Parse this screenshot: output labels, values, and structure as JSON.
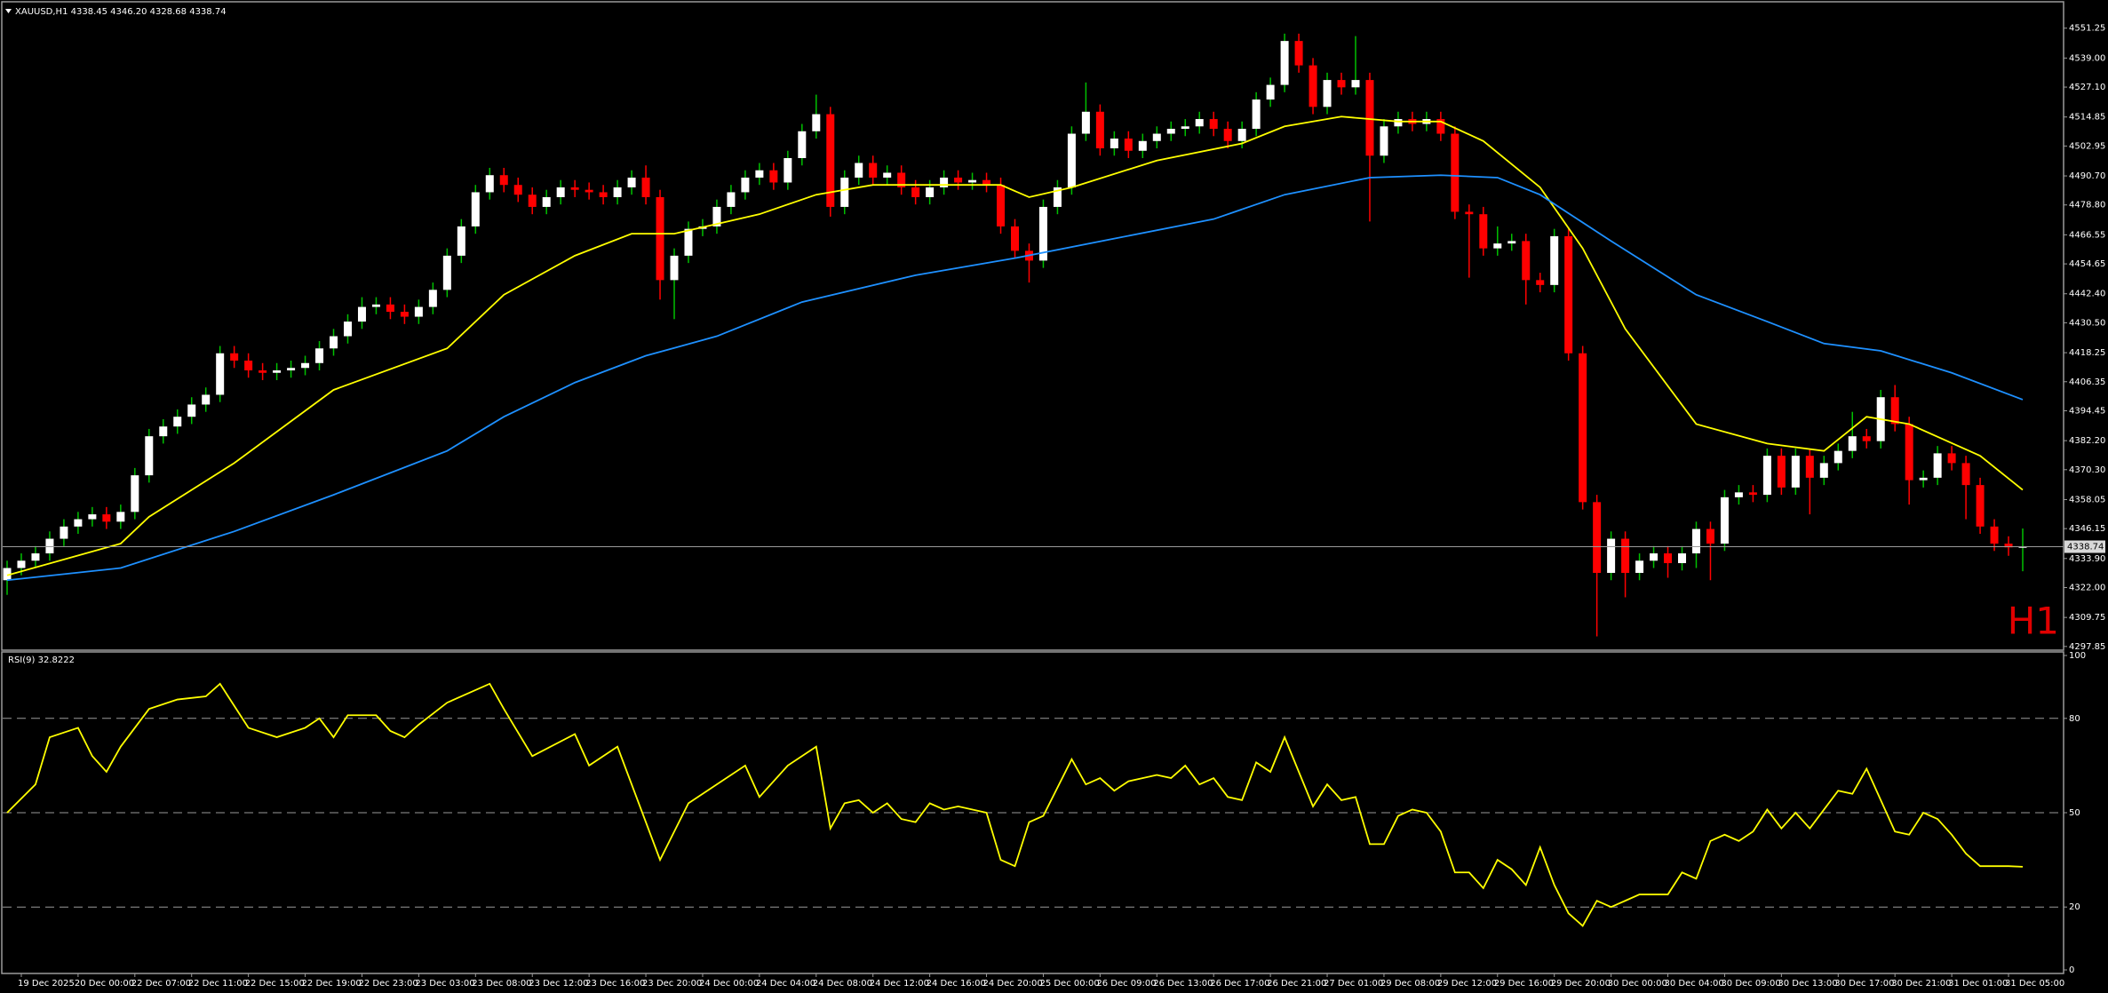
{
  "chart_data": [
    {
      "type": "candlestick",
      "title": "XAUUSD,H1  4338.45 4346.20 4328.68 4338.74",
      "annotation": "H1",
      "categories": [
        null,
        "19 Dec 2025",
        null,
        null,
        null,
        "20 Dec 00:00",
        null,
        null,
        null,
        "22 Dec 07:00",
        null,
        null,
        null,
        "22 Dec 11:00",
        null,
        null,
        null,
        "22 Dec 15:00",
        null,
        null,
        null,
        "22 Dec 19:00",
        null,
        null,
        null,
        "22 Dec 23:00",
        null,
        null,
        null,
        "23 Dec 03:00",
        null,
        null,
        null,
        "23 Dec 08:00",
        null,
        null,
        null,
        "23 Dec 12:00",
        null,
        null,
        null,
        "23 Dec 16:00",
        null,
        null,
        null,
        "23 Dec 20:00",
        null,
        null,
        null,
        "24 Dec 00:00",
        null,
        null,
        null,
        "24 Dec 04:00",
        null,
        null,
        null,
        "24 Dec 08:00",
        null,
        null,
        null,
        "24 Dec 12:00",
        null,
        null,
        null,
        "24 Dec 16:00",
        null,
        null,
        null,
        "24 Dec 20:00",
        null,
        null,
        null,
        "25 Dec 00:00",
        null,
        null,
        null,
        "26 Dec 09:00",
        null,
        null,
        null,
        "26 Dec 13:00",
        null,
        null,
        null,
        "26 Dec 17:00",
        null,
        null,
        null,
        "26 Dec 21:00",
        null,
        null,
        null,
        "27 Dec 01:00",
        null,
        null,
        null,
        "29 Dec 08:00",
        null,
        null,
        null,
        "29 Dec 12:00",
        null,
        null,
        null,
        "29 Dec 16:00",
        null,
        null,
        null,
        "29 Dec 20:00",
        null,
        null,
        null,
        "30 Dec 00:00",
        null,
        null,
        null,
        "30 Dec 04:00",
        null,
        null,
        null,
        "30 Dec 09:00",
        null,
        null,
        null,
        "30 Dec 13:00",
        null,
        null,
        null,
        "30 Dec 17:00",
        null,
        null,
        null,
        "30 Dec 21:00",
        null,
        null,
        null,
        "31 Dec 01:00",
        null,
        null,
        null,
        "31 Dec 05:00",
        null
      ],
      "open": [
        4325,
        4330,
        4333,
        4336,
        4342,
        4347,
        4350,
        4352,
        4349,
        4353,
        4368,
        4384,
        4388,
        4392,
        4397,
        4401,
        4418,
        4415,
        4411,
        4410,
        4411,
        4412,
        4414,
        4420,
        4425,
        4431,
        4437,
        4438,
        4435,
        4433,
        4437,
        4444,
        4458,
        4470,
        4484,
        4491,
        4487,
        4483,
        4478,
        4482,
        4486,
        4485,
        4484,
        4482,
        4486,
        4490,
        4482,
        4448,
        4458,
        4469,
        4470,
        4478,
        4484,
        4490,
        4493,
        4488,
        4498,
        4509,
        4516,
        4478,
        4490,
        4496,
        4490,
        4492,
        4486,
        4482,
        4486,
        4490,
        4488,
        4489,
        4487,
        4470,
        4460,
        4456,
        4478,
        4486,
        4508,
        4517,
        4502,
        4506,
        4501,
        4505,
        4508,
        4510,
        4511,
        4514,
        4510,
        4505,
        4510,
        4522,
        4528,
        4546,
        4536,
        4519,
        4530,
        4527,
        4530,
        4499,
        4511,
        4514,
        4512,
        4514,
        4508,
        4476,
        4475,
        4461,
        4463,
        4464,
        4448,
        4446,
        4466,
        4418,
        4357,
        4328,
        4342,
        4328,
        4333,
        4336,
        4332,
        4336,
        4346,
        4340,
        4359,
        4361,
        4360,
        4376,
        4363,
        4376,
        4367,
        4373,
        4378,
        4384,
        4382,
        4400,
        4389,
        4366,
        4367,
        4377,
        4373,
        4364,
        4347,
        4340,
        4338.45
      ],
      "high": [
        4333,
        4336,
        4339,
        4345,
        4350,
        4353,
        4355,
        4355,
        4356,
        4371,
        4387,
        4391,
        4395,
        4400,
        4404,
        4421,
        4421,
        4418,
        4414,
        4414,
        4415,
        4417,
        4423,
        4428,
        4434,
        4441,
        4441,
        4441,
        4438,
        4440,
        4447,
        4461,
        4473,
        4487,
        4494,
        4494,
        4490,
        4486,
        4485,
        4489,
        4489,
        4488,
        4487,
        4489,
        4493,
        4495,
        4485,
        4461,
        4472,
        4473,
        4481,
        4487,
        4493,
        4496,
        4496,
        4501,
        4512,
        4524,
        4519,
        4493,
        4499,
        4499,
        4495,
        4495,
        4489,
        4489,
        4493,
        4493,
        4492,
        4492,
        4490,
        4473,
        4463,
        4481,
        4489,
        4511,
        4529,
        4520,
        4509,
        4509,
        4508,
        4511,
        4513,
        4514,
        4517,
        4517,
        4513,
        4513,
        4525,
        4531,
        4549,
        4549,
        4539,
        4533,
        4533,
        4548,
        4533,
        4514,
        4517,
        4517,
        4517,
        4517,
        4511,
        4479,
        4478,
        4470,
        4467,
        4467,
        4451,
        4469,
        4469,
        4421,
        4360,
        4345,
        4345,
        4336,
        4339,
        4339,
        4339,
        4349,
        4349,
        4362,
        4364,
        4364,
        4379,
        4379,
        4379,
        4379,
        4376,
        4381,
        4394,
        4387,
        4403,
        4405,
        4392,
        4370,
        4380,
        4380,
        4376,
        4367,
        4350,
        4343,
        4346.2
      ],
      "low": [
        4319,
        4327,
        4330,
        4333,
        4339,
        4344,
        4347,
        4346,
        4346,
        4350,
        4365,
        4381,
        4385,
        4389,
        4394,
        4398,
        4412,
        4408,
        4407,
        4407,
        4408,
        4409,
        4411,
        4417,
        4422,
        4428,
        4434,
        4432,
        4430,
        4430,
        4434,
        4441,
        4455,
        4467,
        4481,
        4484,
        4480,
        4475,
        4475,
        4479,
        4482,
        4481,
        4479,
        4479,
        4483,
        4479,
        4440,
        4432,
        4455,
        4466,
        4467,
        4475,
        4481,
        4487,
        4485,
        4485,
        4495,
        4506,
        4474,
        4475,
        4487,
        4487,
        4487,
        4483,
        4479,
        4479,
        4483,
        4485,
        4485,
        4484,
        4467,
        4457,
        4447,
        4453,
        4475,
        4483,
        4505,
        4499,
        4499,
        4498,
        4498,
        4502,
        4505,
        4507,
        4508,
        4507,
        4502,
        4502,
        4507,
        4519,
        4525,
        4533,
        4516,
        4516,
        4524,
        4524,
        4472,
        4496,
        4508,
        4509,
        4509,
        4505,
        4473,
        4449,
        4458,
        4458,
        4460,
        4438,
        4443,
        4443,
        4415,
        4354,
        4302,
        4325,
        4318,
        4325,
        4330,
        4326,
        4329,
        4330,
        4325,
        4337,
        4356,
        4357,
        4357,
        4360,
        4360,
        4352,
        4364,
        4370,
        4375,
        4379,
        4379,
        4386,
        4356,
        4363,
        4364,
        4370,
        4350,
        4344,
        4337,
        4335,
        4328.68
      ],
      "close": [
        4330,
        4333,
        4336,
        4342,
        4347,
        4350,
        4352,
        4349,
        4353,
        4368,
        4384,
        4388,
        4392,
        4397,
        4401,
        4418,
        4415,
        4411,
        4410,
        4411,
        4412,
        4414,
        4420,
        4425,
        4431,
        4437,
        4438,
        4435,
        4433,
        4437,
        4444,
        4458,
        4470,
        4484,
        4491,
        4487,
        4483,
        4478,
        4482,
        4486,
        4485,
        4484,
        4482,
        4486,
        4490,
        4482,
        4448,
        4458,
        4469,
        4470,
        4478,
        4484,
        4490,
        4493,
        4488,
        4498,
        4509,
        4516,
        4478,
        4490,
        4496,
        4490,
        4492,
        4486,
        4482,
        4486,
        4490,
        4488,
        4489,
        4487,
        4470,
        4460,
        4456,
        4478,
        4486,
        4508,
        4517,
        4502,
        4506,
        4501,
        4505,
        4508,
        4510,
        4511,
        4514,
        4510,
        4505,
        4510,
        4522,
        4528,
        4546,
        4536,
        4519,
        4530,
        4527,
        4530,
        4499,
        4511,
        4514,
        4512,
        4514,
        4508,
        4476,
        4475,
        4461,
        4463,
        4464,
        4448,
        4446,
        4466,
        4418,
        4357,
        4328,
        4342,
        4328,
        4333,
        4336,
        4332,
        4336,
        4346,
        4340,
        4359,
        4361,
        4360,
        4376,
        4363,
        4376,
        4367,
        4373,
        4378,
        4384,
        4382,
        4400,
        4389,
        4366,
        4367,
        4377,
        4373,
        4364,
        4347,
        4340,
        4338.45,
        4338.74
      ],
      "up_color": "#ffffff",
      "up_wick_color": "#00c000",
      "down_color": "#ff0000",
      "series": [
        {
          "color": "#ffff00",
          "x": [
            0,
            8,
            10,
            16,
            23,
            31,
            35,
            40,
            44,
            47,
            53,
            57,
            61,
            66,
            70,
            72,
            75,
            81,
            87,
            90,
            94,
            98,
            101,
            104,
            108,
            111,
            114,
            119,
            124,
            128,
            131,
            134,
            139,
            142
          ],
          "values": [
            4327,
            4340,
            4351,
            4373,
            4403,
            4420,
            4442,
            4458,
            4467,
            4467,
            4475,
            4483,
            4487,
            4487,
            4487,
            4482,
            4486,
            4497,
            4504,
            4511,
            4515,
            4513,
            4513,
            4505,
            4486,
            4461,
            4428,
            4389,
            4381,
            4378,
            4392,
            4389,
            4376,
            4362
          ]
        },
        {
          "color": "#1e90ff",
          "x": [
            0,
            8,
            16,
            23,
            31,
            35,
            40,
            45,
            50,
            56,
            64,
            71,
            78,
            85,
            90,
            96,
            101,
            105,
            108,
            113,
            119,
            124,
            128,
            132,
            137,
            142
          ],
          "values": [
            4325,
            4330,
            4345,
            4360,
            4378,
            4392,
            4406,
            4417,
            4425,
            4439,
            4450,
            4457,
            4465,
            4473,
            4483,
            4490,
            4491,
            4490,
            4483,
            4464,
            4442,
            4431,
            4422,
            4419,
            4410,
            4399
          ]
        }
      ],
      "ylim": [
        4296.7,
        4561.7
      ],
      "yticks": [
        4551.25,
        {
          "value": 4539,
          "label": "4539.00"
        },
        {
          "value": 4527.1,
          "label": "4527.10"
        },
        4514.85,
        4502.95,
        {
          "value": 4490.7,
          "label": "4490.70"
        },
        {
          "value": 4478.8,
          "label": "4478.80"
        },
        4466.55,
        4454.65,
        {
          "value": 4442.4,
          "label": "4442.40"
        },
        {
          "value": 4430.5,
          "label": "4430.50"
        },
        4418.25,
        4406.35,
        4394.45,
        {
          "value": 4382.2,
          "label": "4382.20"
        },
        {
          "value": 4370.3,
          "label": "4370.30"
        },
        4358.05,
        4346.15,
        {
          "value": 4333.9,
          "label": "4333.90"
        },
        {
          "value": 4322,
          "label": "4322.00"
        },
        4309.75,
        4297.85
      ],
      "bid_line_color": "#9a9a9a"
    },
    {
      "type": "line",
      "title": "RSI(9) 32.8222",
      "series": [
        {
          "color": "#ffff00",
          "x": [
            0,
            2,
            3,
            5,
            6,
            7,
            8,
            10,
            12,
            14,
            15,
            17,
            19,
            21,
            22,
            23,
            24,
            26,
            27,
            28,
            29,
            31,
            34,
            35,
            37,
            40,
            41,
            43,
            46,
            48,
            50,
            52,
            53,
            55,
            57,
            58,
            59,
            60,
            61,
            62,
            63,
            64,
            65,
            66,
            67,
            69,
            70,
            71,
            72,
            73,
            75,
            76,
            77,
            78,
            79,
            81,
            82,
            83,
            84,
            85,
            86,
            87,
            88,
            89,
            90,
            92,
            93,
            94,
            95,
            96,
            97,
            98,
            99,
            100,
            101,
            102,
            103,
            104,
            105,
            106,
            107,
            108,
            109,
            110,
            111,
            112,
            113,
            114,
            115,
            116,
            117,
            118,
            119,
            120,
            121,
            122,
            123,
            124,
            125,
            126,
            127,
            128,
            129,
            130,
            131,
            132,
            133,
            134,
            135,
            136,
            137,
            138,
            139,
            141,
            142
          ],
          "values": [
            50,
            59,
            74,
            77,
            68,
            63,
            71,
            83,
            86,
            87,
            91,
            77,
            74,
            77,
            80,
            74,
            81,
            81,
            76,
            74,
            78,
            85,
            91,
            83,
            68,
            75,
            65,
            71,
            35,
            53,
            59,
            65,
            55,
            65,
            71,
            45,
            53,
            54,
            50,
            53,
            48,
            47,
            53,
            51,
            52,
            50,
            35,
            33,
            47,
            49,
            67,
            59,
            61,
            57,
            60,
            62,
            61,
            65,
            59,
            61,
            55,
            54,
            66,
            63,
            74,
            52,
            59,
            54,
            55,
            40,
            40,
            49,
            51,
            50,
            44,
            31,
            31,
            26,
            35,
            32,
            27,
            39,
            27,
            18,
            14,
            22,
            20,
            22,
            24,
            24,
            24,
            31,
            29,
            41,
            43,
            41,
            44,
            51,
            45,
            50,
            45,
            51,
            57,
            56,
            64,
            54,
            44,
            43,
            50,
            48,
            43,
            37,
            33,
            33,
            32.8
          ]
        }
      ],
      "ylim": [
        0,
        100
      ],
      "yticks": [
        100,
        80,
        50,
        20,
        0
      ],
      "levels": [
        80,
        50,
        20
      ],
      "level_color": "#9a9a9a"
    }
  ]
}
